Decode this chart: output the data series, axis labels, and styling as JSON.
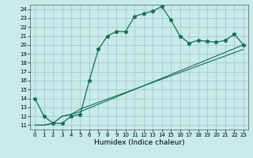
{
  "xlabel": "Humidex (Indice chaleur)",
  "xlim": [
    -0.5,
    23.5
  ],
  "ylim": [
    10.5,
    24.5
  ],
  "yticks": [
    11,
    12,
    13,
    14,
    15,
    16,
    17,
    18,
    19,
    20,
    21,
    22,
    23,
    24
  ],
  "xticks": [
    0,
    1,
    2,
    3,
    4,
    5,
    6,
    7,
    8,
    9,
    10,
    11,
    12,
    13,
    14,
    15,
    16,
    17,
    18,
    19,
    20,
    21,
    22,
    23
  ],
  "bg_color": "#c8eaea",
  "line_color": "#1a6b5a",
  "grid_color": "#9ecece",
  "main_line_x": [
    0,
    1,
    2,
    3,
    4,
    5,
    6,
    7,
    8,
    9,
    10,
    11,
    12,
    13,
    14,
    15,
    16,
    17,
    18,
    19,
    20,
    21,
    22,
    23
  ],
  "main_line_y": [
    14.0,
    12.0,
    11.2,
    11.2,
    12.0,
    12.2,
    16.0,
    19.5,
    21.0,
    21.5,
    21.5,
    23.2,
    23.5,
    23.8,
    24.3,
    22.8,
    21.0,
    20.2,
    20.5,
    20.4,
    20.3,
    20.5,
    21.2,
    20.0
  ],
  "line2_x": [
    0,
    1,
    2,
    3,
    4,
    5,
    23
  ],
  "line2_y": [
    11.0,
    11.0,
    11.2,
    12.0,
    12.2,
    12.5,
    20.0
  ],
  "line3_x": [
    0,
    1,
    2,
    3,
    4,
    5,
    23
  ],
  "line3_y": [
    11.0,
    11.0,
    11.2,
    12.0,
    12.2,
    12.8,
    19.5
  ],
  "xlabel_fontsize": 6.5,
  "tick_fontsize": 5.0
}
